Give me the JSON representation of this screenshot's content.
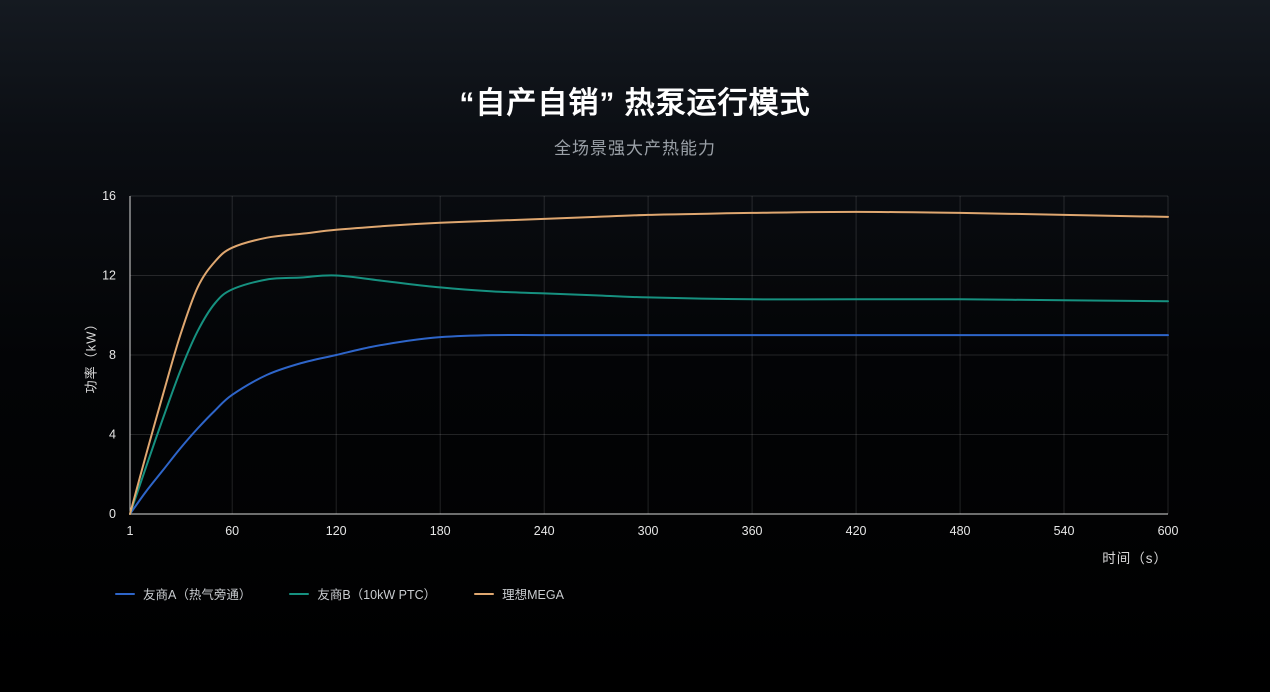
{
  "header": {
    "title": "“自产自销” 热泵运行模式",
    "subtitle": "全场景强大产热能力"
  },
  "chart_data": {
    "type": "line",
    "title": "“自产自销” 热泵运行模式",
    "subtitle": "全场景强大产热能力",
    "xlabel": "时间（s）",
    "ylabel": "功率（kW）",
    "xlim": [
      1,
      600
    ],
    "ylim": [
      0,
      16
    ],
    "x_ticks": [
      1,
      60,
      120,
      180,
      240,
      300,
      360,
      420,
      480,
      540,
      600
    ],
    "y_ticks": [
      0,
      4,
      8,
      12,
      16
    ],
    "grid": true,
    "legend_position": "bottom-left",
    "axis_color": "#d9d9d9",
    "grid_color": "rgba(255,255,255,0.13)",
    "tick_label_color": "#e6e6e6",
    "series": [
      {
        "name": "友商A（热气旁通）",
        "color": "#2e65c9",
        "x": [
          1,
          10,
          20,
          30,
          40,
          50,
          60,
          80,
          100,
          120,
          140,
          160,
          180,
          210,
          240,
          300,
          360,
          420,
          480,
          540,
          600
        ],
        "values": [
          0,
          1.1,
          2.2,
          3.3,
          4.3,
          5.2,
          6.0,
          7.0,
          7.6,
          8.0,
          8.4,
          8.7,
          8.9,
          9.0,
          9.0,
          9.0,
          9.0,
          9.0,
          9.0,
          9.0,
          9.0
        ]
      },
      {
        "name": "友商B（10kW PTC）",
        "color": "#169180",
        "x": [
          1,
          10,
          20,
          30,
          40,
          50,
          60,
          80,
          100,
          120,
          150,
          180,
          210,
          240,
          270,
          300,
          360,
          420,
          480,
          540,
          600
        ],
        "values": [
          0,
          2.3,
          4.8,
          7.2,
          9.2,
          10.6,
          11.3,
          11.8,
          11.9,
          12.0,
          11.7,
          11.4,
          11.2,
          11.1,
          11.0,
          10.9,
          10.8,
          10.8,
          10.8,
          10.75,
          10.7
        ]
      },
      {
        "name": "理想MEGA",
        "color": "#dfa770",
        "x": [
          1,
          10,
          20,
          30,
          40,
          50,
          60,
          80,
          100,
          120,
          150,
          180,
          210,
          240,
          270,
          300,
          330,
          360,
          420,
          480,
          540,
          600
        ],
        "values": [
          0,
          2.9,
          6.0,
          9.0,
          11.4,
          12.7,
          13.4,
          13.9,
          14.1,
          14.3,
          14.5,
          14.65,
          14.75,
          14.85,
          14.95,
          15.05,
          15.1,
          15.15,
          15.2,
          15.15,
          15.05,
          14.95
        ]
      }
    ]
  }
}
